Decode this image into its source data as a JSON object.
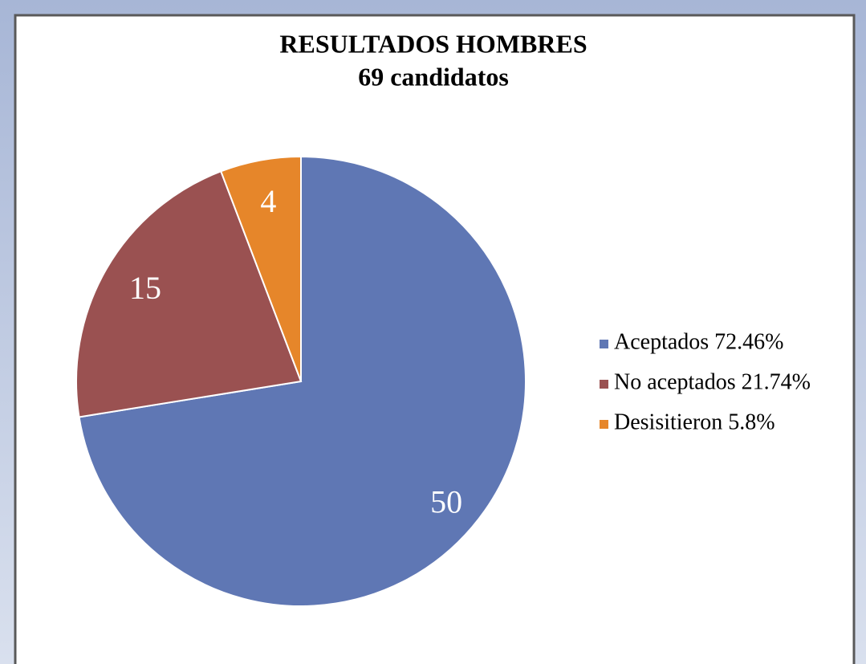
{
  "chart_data": {
    "type": "pie",
    "title": "RESULTADOS HOMBRES",
    "subtitle": "69 candidatos",
    "categories": [
      "Aceptados 72.46%",
      "No aceptados 21.74%",
      "Desisitieron 5.8%"
    ],
    "values": [
      50,
      15,
      4
    ],
    "colors": [
      "#5f77b4",
      "#9a5151",
      "#e6862a"
    ],
    "legend": "right"
  }
}
